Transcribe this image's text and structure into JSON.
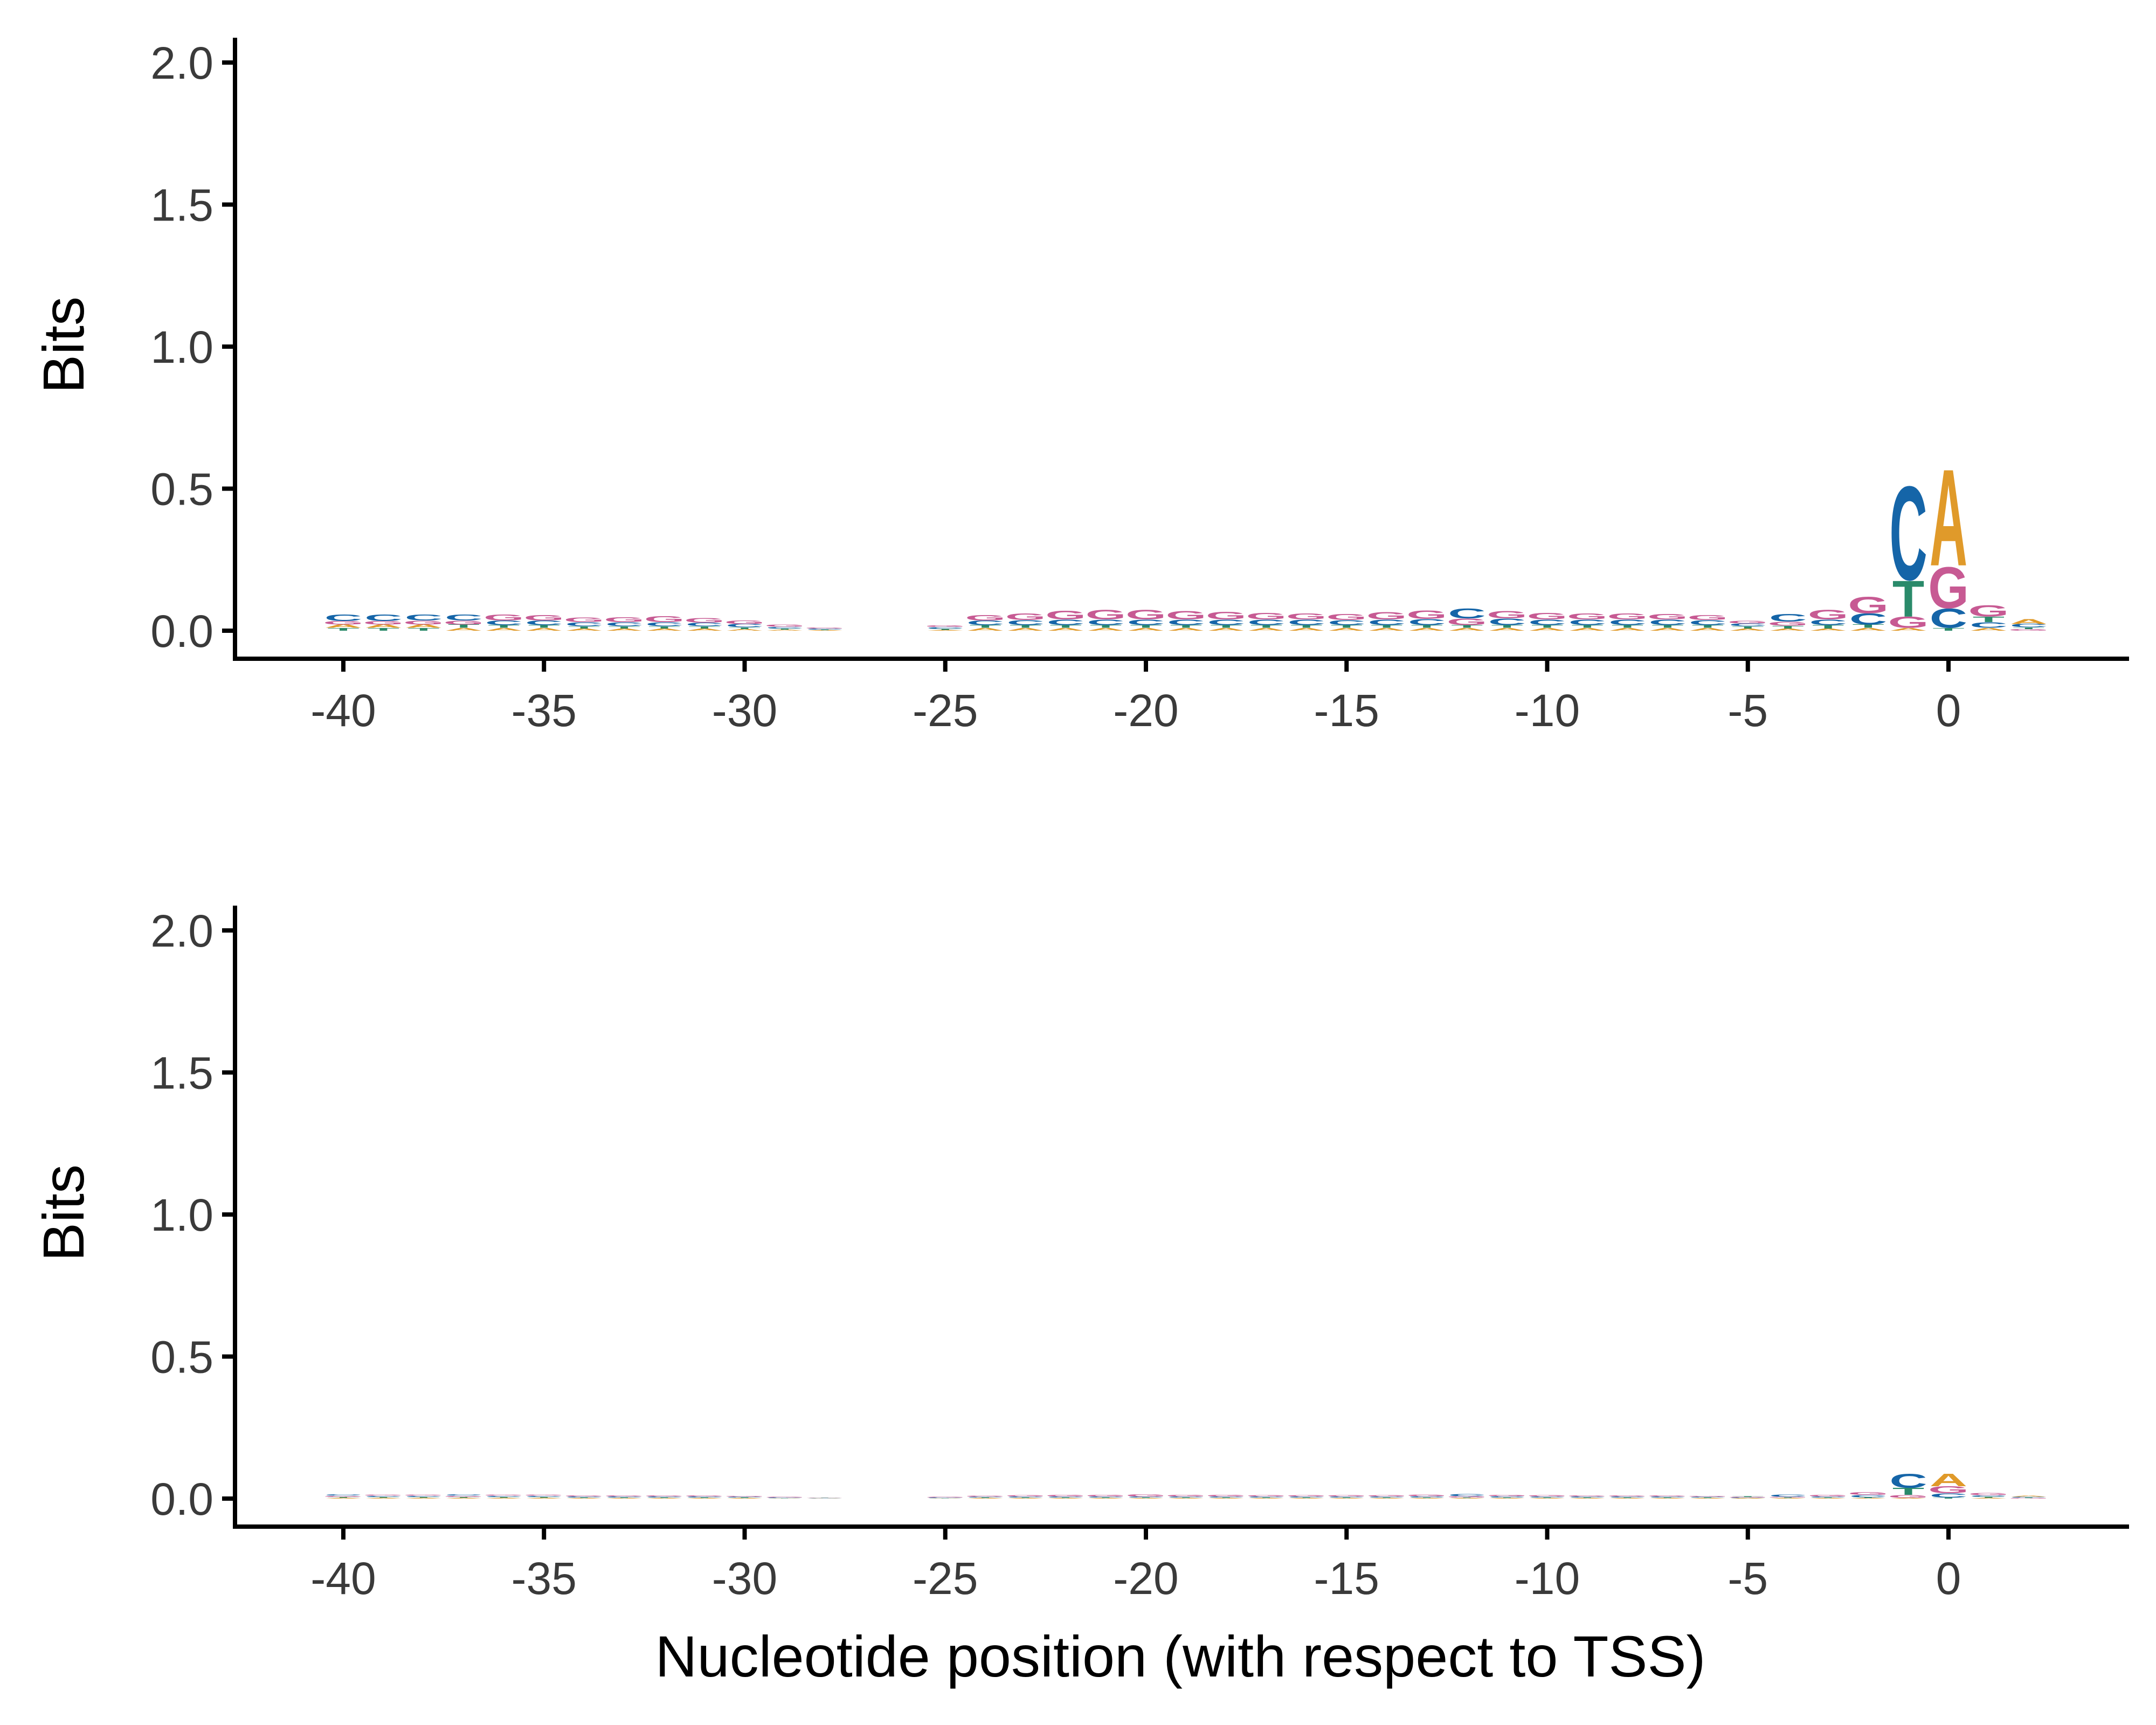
{
  "colors": {
    "A": "#E09A2A",
    "C": "#1565A8",
    "G": "#C75A93",
    "T": "#2A8A6A"
  },
  "chart_data": [
    {
      "type": "sequence-logo",
      "ylabel": "Bits",
      "xlabel": "",
      "ylim": [
        0,
        2.0
      ],
      "xlim": [
        -41.5,
        3.5
      ],
      "yticks": [
        "0.0",
        "0.5",
        "1.0",
        "1.5",
        "2.0"
      ],
      "xticks": [
        "-40",
        "-35",
        "-30",
        "-25",
        "-20",
        "-15",
        "-10",
        "-5",
        "0"
      ],
      "positions": [
        {
          "pos": -40,
          "A": 0.012,
          "C": 0.024,
          "G": 0.012,
          "T": 0.01
        },
        {
          "pos": -39,
          "A": 0.012,
          "C": 0.024,
          "G": 0.012,
          "T": 0.01
        },
        {
          "pos": -38,
          "A": 0.012,
          "C": 0.022,
          "G": 0.014,
          "T": 0.01
        },
        {
          "pos": -37,
          "A": 0.01,
          "C": 0.022,
          "G": 0.014,
          "T": 0.012
        },
        {
          "pos": -36,
          "A": 0.01,
          "C": 0.016,
          "G": 0.022,
          "T": 0.01
        },
        {
          "pos": -35,
          "A": 0.01,
          "C": 0.016,
          "G": 0.02,
          "T": 0.01
        },
        {
          "pos": -34,
          "A": 0.008,
          "C": 0.014,
          "G": 0.016,
          "T": 0.008
        },
        {
          "pos": -33,
          "A": 0.008,
          "C": 0.014,
          "G": 0.018,
          "T": 0.008
        },
        {
          "pos": -32,
          "A": 0.008,
          "C": 0.014,
          "G": 0.022,
          "T": 0.008
        },
        {
          "pos": -31,
          "A": 0.008,
          "C": 0.012,
          "G": 0.016,
          "T": 0.008
        },
        {
          "pos": -30,
          "A": 0.006,
          "C": 0.012,
          "G": 0.012,
          "T": 0.006
        },
        {
          "pos": -29,
          "A": 0.004,
          "C": 0.006,
          "G": 0.008,
          "T": 0.004
        },
        {
          "pos": -28,
          "A": 0.002,
          "C": 0.004,
          "G": 0.004,
          "T": 0.002
        },
        {
          "pos": -27,
          "A": 0.0,
          "C": 0.0,
          "G": 0.0,
          "T": 0.0
        },
        {
          "pos": -26,
          "A": 0.0,
          "C": 0.0,
          "G": 0.0,
          "T": 0.0
        },
        {
          "pos": -25,
          "A": 0.003,
          "C": 0.006,
          "G": 0.006,
          "T": 0.004
        },
        {
          "pos": -24,
          "A": 0.01,
          "C": 0.016,
          "G": 0.02,
          "T": 0.01
        },
        {
          "pos": -23,
          "A": 0.01,
          "C": 0.018,
          "G": 0.024,
          "T": 0.01
        },
        {
          "pos": -22,
          "A": 0.01,
          "C": 0.02,
          "G": 0.032,
          "T": 0.01
        },
        {
          "pos": -21,
          "A": 0.01,
          "C": 0.02,
          "G": 0.034,
          "T": 0.01
        },
        {
          "pos": -20,
          "A": 0.01,
          "C": 0.02,
          "G": 0.034,
          "T": 0.01
        },
        {
          "pos": -19,
          "A": 0.01,
          "C": 0.02,
          "G": 0.03,
          "T": 0.01
        },
        {
          "pos": -18,
          "A": 0.01,
          "C": 0.02,
          "G": 0.028,
          "T": 0.01
        },
        {
          "pos": -17,
          "A": 0.01,
          "C": 0.02,
          "G": 0.024,
          "T": 0.01
        },
        {
          "pos": -16,
          "A": 0.01,
          "C": 0.02,
          "G": 0.022,
          "T": 0.01
        },
        {
          "pos": -15,
          "A": 0.01,
          "C": 0.018,
          "G": 0.022,
          "T": 0.01
        },
        {
          "pos": -14,
          "A": 0.01,
          "C": 0.02,
          "G": 0.026,
          "T": 0.01
        },
        {
          "pos": -13,
          "A": 0.01,
          "C": 0.022,
          "G": 0.03,
          "T": 0.01
        },
        {
          "pos": -12,
          "A": 0.01,
          "C": 0.036,
          "G": 0.024,
          "T": 0.01
        },
        {
          "pos": -11,
          "A": 0.01,
          "C": 0.024,
          "G": 0.026,
          "T": 0.01
        },
        {
          "pos": -10,
          "A": 0.01,
          "C": 0.02,
          "G": 0.024,
          "T": 0.01
        },
        {
          "pos": -9,
          "A": 0.01,
          "C": 0.02,
          "G": 0.022,
          "T": 0.01
        },
        {
          "pos": -8,
          "A": 0.01,
          "C": 0.02,
          "G": 0.022,
          "T": 0.01
        },
        {
          "pos": -7,
          "A": 0.01,
          "C": 0.02,
          "G": 0.02,
          "T": 0.01
        },
        {
          "pos": -6,
          "A": 0.01,
          "C": 0.018,
          "G": 0.018,
          "T": 0.01
        },
        {
          "pos": -5,
          "A": 0.008,
          "C": 0.01,
          "G": 0.01,
          "T": 0.008
        },
        {
          "pos": -4,
          "A": 0.008,
          "C": 0.028,
          "G": 0.014,
          "T": 0.01
        },
        {
          "pos": -3,
          "A": 0.008,
          "C": 0.02,
          "G": 0.034,
          "T": 0.012
        },
        {
          "pos": -2,
          "A": 0.01,
          "C": 0.04,
          "G": 0.06,
          "T": 0.012
        },
        {
          "pos": -1,
          "A": 0.01,
          "C": 0.34,
          "G": 0.04,
          "T": 0.13
        },
        {
          "pos": 0,
          "A": 0.35,
          "C": 0.07,
          "G": 0.15,
          "T": 0.01
        },
        {
          "pos": 1,
          "A": 0.01,
          "C": 0.02,
          "G": 0.04,
          "T": 0.02
        },
        {
          "pos": 2,
          "A": 0.018,
          "C": 0.012,
          "G": 0.006,
          "T": 0.006
        }
      ]
    },
    {
      "type": "sequence-logo",
      "ylabel": "Bits",
      "xlabel": "Nucleotide position (with respect to TSS)",
      "ylim": [
        0,
        2.0
      ],
      "xlim": [
        -41.5,
        3.5
      ],
      "yticks": [
        "0.0",
        "0.5",
        "1.0",
        "1.5",
        "2.0"
      ],
      "xticks": [
        "-40",
        "-35",
        "-30",
        "-25",
        "-20",
        "-15",
        "-10",
        "-5",
        "0"
      ],
      "positions": [
        {
          "pos": -40,
          "A": 0.003,
          "C": 0.005,
          "G": 0.004,
          "T": 0.003
        },
        {
          "pos": -39,
          "A": 0.003,
          "C": 0.004,
          "G": 0.004,
          "T": 0.003
        },
        {
          "pos": -38,
          "A": 0.003,
          "C": 0.004,
          "G": 0.004,
          "T": 0.003
        },
        {
          "pos": -37,
          "A": 0.003,
          "C": 0.005,
          "G": 0.004,
          "T": 0.003
        },
        {
          "pos": -36,
          "A": 0.003,
          "C": 0.004,
          "G": 0.004,
          "T": 0.003
        },
        {
          "pos": -35,
          "A": 0.003,
          "C": 0.004,
          "G": 0.004,
          "T": 0.003
        },
        {
          "pos": -34,
          "A": 0.002,
          "C": 0.004,
          "G": 0.004,
          "T": 0.002
        },
        {
          "pos": -33,
          "A": 0.002,
          "C": 0.004,
          "G": 0.004,
          "T": 0.002
        },
        {
          "pos": -32,
          "A": 0.002,
          "C": 0.004,
          "G": 0.004,
          "T": 0.002
        },
        {
          "pos": -31,
          "A": 0.002,
          "C": 0.004,
          "G": 0.004,
          "T": 0.002
        },
        {
          "pos": -30,
          "A": 0.002,
          "C": 0.003,
          "G": 0.003,
          "T": 0.002
        },
        {
          "pos": -29,
          "A": 0.001,
          "C": 0.002,
          "G": 0.002,
          "T": 0.001
        },
        {
          "pos": -28,
          "A": 0.001,
          "C": 0.001,
          "G": 0.001,
          "T": 0.001
        },
        {
          "pos": -27,
          "A": 0.0,
          "C": 0.0,
          "G": 0.0,
          "T": 0.0
        },
        {
          "pos": -26,
          "A": 0.0,
          "C": 0.0,
          "G": 0.0,
          "T": 0.0
        },
        {
          "pos": -25,
          "A": 0.001,
          "C": 0.002,
          "G": 0.002,
          "T": 0.001
        },
        {
          "pos": -24,
          "A": 0.002,
          "C": 0.003,
          "G": 0.004,
          "T": 0.002
        },
        {
          "pos": -23,
          "A": 0.002,
          "C": 0.004,
          "G": 0.005,
          "T": 0.002
        },
        {
          "pos": -22,
          "A": 0.002,
          "C": 0.004,
          "G": 0.006,
          "T": 0.002
        },
        {
          "pos": -21,
          "A": 0.002,
          "C": 0.004,
          "G": 0.006,
          "T": 0.002
        },
        {
          "pos": -20,
          "A": 0.002,
          "C": 0.004,
          "G": 0.007,
          "T": 0.002
        },
        {
          "pos": -19,
          "A": 0.002,
          "C": 0.004,
          "G": 0.006,
          "T": 0.002
        },
        {
          "pos": -18,
          "A": 0.002,
          "C": 0.004,
          "G": 0.006,
          "T": 0.002
        },
        {
          "pos": -17,
          "A": 0.002,
          "C": 0.004,
          "G": 0.005,
          "T": 0.002
        },
        {
          "pos": -16,
          "A": 0.002,
          "C": 0.004,
          "G": 0.005,
          "T": 0.002
        },
        {
          "pos": -15,
          "A": 0.002,
          "C": 0.004,
          "G": 0.005,
          "T": 0.002
        },
        {
          "pos": -14,
          "A": 0.002,
          "C": 0.004,
          "G": 0.005,
          "T": 0.002
        },
        {
          "pos": -13,
          "A": 0.002,
          "C": 0.005,
          "G": 0.006,
          "T": 0.002
        },
        {
          "pos": -12,
          "A": 0.002,
          "C": 0.007,
          "G": 0.005,
          "T": 0.002
        },
        {
          "pos": -11,
          "A": 0.002,
          "C": 0.005,
          "G": 0.005,
          "T": 0.002
        },
        {
          "pos": -10,
          "A": 0.002,
          "C": 0.004,
          "G": 0.005,
          "T": 0.002
        },
        {
          "pos": -9,
          "A": 0.002,
          "C": 0.004,
          "G": 0.004,
          "T": 0.002
        },
        {
          "pos": -8,
          "A": 0.002,
          "C": 0.004,
          "G": 0.004,
          "T": 0.002
        },
        {
          "pos": -7,
          "A": 0.002,
          "C": 0.004,
          "G": 0.004,
          "T": 0.002
        },
        {
          "pos": -6,
          "A": 0.002,
          "C": 0.003,
          "G": 0.003,
          "T": 0.002
        },
        {
          "pos": -5,
          "A": 0.002,
          "C": 0.002,
          "G": 0.002,
          "T": 0.002
        },
        {
          "pos": -4,
          "A": 0.002,
          "C": 0.007,
          "G": 0.003,
          "T": 0.002
        },
        {
          "pos": -3,
          "A": 0.002,
          "C": 0.004,
          "G": 0.006,
          "T": 0.002
        },
        {
          "pos": -2,
          "A": 0.002,
          "C": 0.008,
          "G": 0.01,
          "T": 0.003
        },
        {
          "pos": -1,
          "A": 0.003,
          "C": 0.05,
          "G": 0.01,
          "T": 0.025
        },
        {
          "pos": 0,
          "A": 0.045,
          "C": 0.015,
          "G": 0.025,
          "T": 0.004
        },
        {
          "pos": 1,
          "A": 0.003,
          "C": 0.005,
          "G": 0.008,
          "T": 0.004
        },
        {
          "pos": 2,
          "A": 0.004,
          "C": 0.003,
          "G": 0.002,
          "T": 0.002
        }
      ]
    }
  ]
}
